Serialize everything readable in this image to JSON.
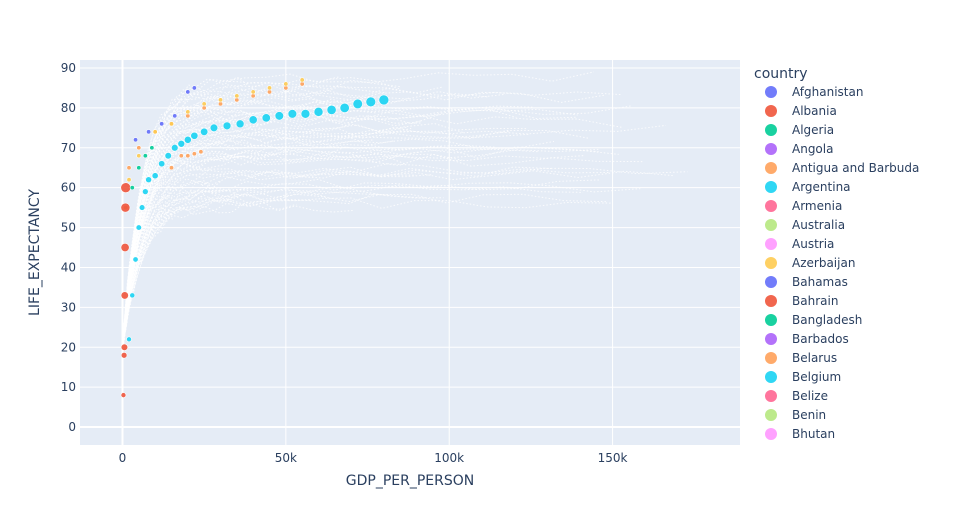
{
  "chart_data": {
    "type": "scatter",
    "title": "",
    "xlabel": "GDP_PER_PERSON",
    "ylabel": "LIFE_EXPECTANCY",
    "xlim": [
      -13000,
      189000
    ],
    "ylim": [
      -4.5,
      92
    ],
    "x_ticks": [
      0,
      50000,
      100000,
      150000
    ],
    "x_tick_labels": [
      "0",
      "50k",
      "100k",
      "150k"
    ],
    "y_ticks": [
      0,
      10,
      20,
      30,
      40,
      50,
      60,
      70,
      80,
      90
    ],
    "y_tick_labels": [
      "0",
      "10",
      "20",
      "30",
      "40",
      "50",
      "60",
      "70",
      "80",
      "90"
    ],
    "grid": true,
    "plot_background": "#e5ecf6",
    "legend": {
      "title": "country",
      "position": "right",
      "entries": [
        {
          "name": "Afghanistan",
          "color": "#636efa"
        },
        {
          "name": "Albania",
          "color": "#ef553b"
        },
        {
          "name": "Algeria",
          "color": "#00cc96"
        },
        {
          "name": "Angola",
          "color": "#ab63fa"
        },
        {
          "name": "Antigua and Barbuda",
          "color": "#ffa15a"
        },
        {
          "name": "Argentina",
          "color": "#19d3f3"
        },
        {
          "name": "Armenia",
          "color": "#ff6692"
        },
        {
          "name": "Australia",
          "color": "#b6e880"
        },
        {
          "name": "Austria",
          "color": "#ff97ff"
        },
        {
          "name": "Azerbaijan",
          "color": "#fecb52"
        },
        {
          "name": "Bahamas",
          "color": "#636efa"
        },
        {
          "name": "Bahrain",
          "color": "#ef553b"
        },
        {
          "name": "Bangladesh",
          "color": "#00cc96"
        },
        {
          "name": "Barbados",
          "color": "#ab63fa"
        },
        {
          "name": "Belarus",
          "color": "#ffa15a"
        },
        {
          "name": "Belgium",
          "color": "#19d3f3"
        },
        {
          "name": "Belize",
          "color": "#ff6692"
        },
        {
          "name": "Benin",
          "color": "#b6e880"
        },
        {
          "name": "Bhutan",
          "color": "#ff97ff"
        }
      ]
    },
    "series": [
      {
        "name": "Argentina",
        "color": "#19d3f3",
        "size_encoded": true,
        "points": [
          [
            2000,
            22
          ],
          [
            3000,
            33
          ],
          [
            4000,
            42
          ],
          [
            5000,
            50
          ],
          [
            6000,
            55
          ],
          [
            7000,
            59
          ],
          [
            8000,
            62
          ],
          [
            10000,
            63
          ],
          [
            12000,
            66
          ],
          [
            14000,
            68
          ],
          [
            16000,
            70
          ],
          [
            18000,
            71
          ],
          [
            20000,
            72
          ],
          [
            22000,
            73
          ],
          [
            25000,
            74
          ],
          [
            28000,
            75
          ],
          [
            32000,
            75.5
          ],
          [
            36000,
            76
          ],
          [
            40000,
            77
          ],
          [
            44000,
            77.5
          ],
          [
            48000,
            78
          ],
          [
            52000,
            78.5
          ],
          [
            56000,
            78.5
          ],
          [
            60000,
            79
          ],
          [
            64000,
            79.5
          ],
          [
            68000,
            80
          ],
          [
            72000,
            81
          ],
          [
            76000,
            81.5
          ],
          [
            80000,
            82
          ]
        ]
      },
      {
        "name": "Antigua and Barbuda",
        "color": "#ffa15a",
        "points": [
          [
            1000,
            55
          ],
          [
            2000,
            65
          ],
          [
            5000,
            70
          ],
          [
            10000,
            74
          ],
          [
            15000,
            76
          ],
          [
            20000,
            78
          ],
          [
            25000,
            80
          ],
          [
            30000,
            81
          ],
          [
            35000,
            82
          ],
          [
            40000,
            83
          ],
          [
            45000,
            84
          ],
          [
            50000,
            85
          ],
          [
            55000,
            86
          ]
        ]
      },
      {
        "name": "Azerbaijan",
        "color": "#fecb52",
        "points": [
          [
            2000,
            62
          ],
          [
            5000,
            68
          ],
          [
            10000,
            74
          ],
          [
            15000,
            76
          ],
          [
            20000,
            79
          ],
          [
            25000,
            81
          ],
          [
            30000,
            82
          ],
          [
            35000,
            83
          ],
          [
            40000,
            84
          ],
          [
            45000,
            85
          ],
          [
            50000,
            86
          ],
          [
            55000,
            87
          ]
        ]
      },
      {
        "name": "Afghanistan",
        "color": "#636efa",
        "points": [
          [
            4000,
            72
          ],
          [
            8000,
            74
          ],
          [
            12000,
            76
          ],
          [
            16000,
            78
          ],
          [
            20000,
            84
          ],
          [
            22000,
            85
          ]
        ]
      },
      {
        "name": "Bahrain",
        "color": "#ef553b",
        "size_encoded": true,
        "points": [
          [
            300,
            8
          ],
          [
            500,
            18
          ],
          [
            600,
            20
          ],
          [
            700,
            33
          ],
          [
            800,
            45
          ],
          [
            900,
            55
          ],
          [
            1000,
            60
          ]
        ]
      },
      {
        "name": "Bangladesh",
        "color": "#00cc96",
        "points": [
          [
            3000,
            60
          ],
          [
            5000,
            65
          ],
          [
            7000,
            68
          ],
          [
            9000,
            70
          ]
        ]
      },
      {
        "name": "Belarus",
        "color": "#ffa15a",
        "points": [
          [
            15000,
            65
          ],
          [
            18000,
            68
          ],
          [
            20000,
            68
          ],
          [
            22000,
            68.5
          ],
          [
            24000,
            69
          ]
        ]
      }
    ],
    "faint_cloud": true
  }
}
